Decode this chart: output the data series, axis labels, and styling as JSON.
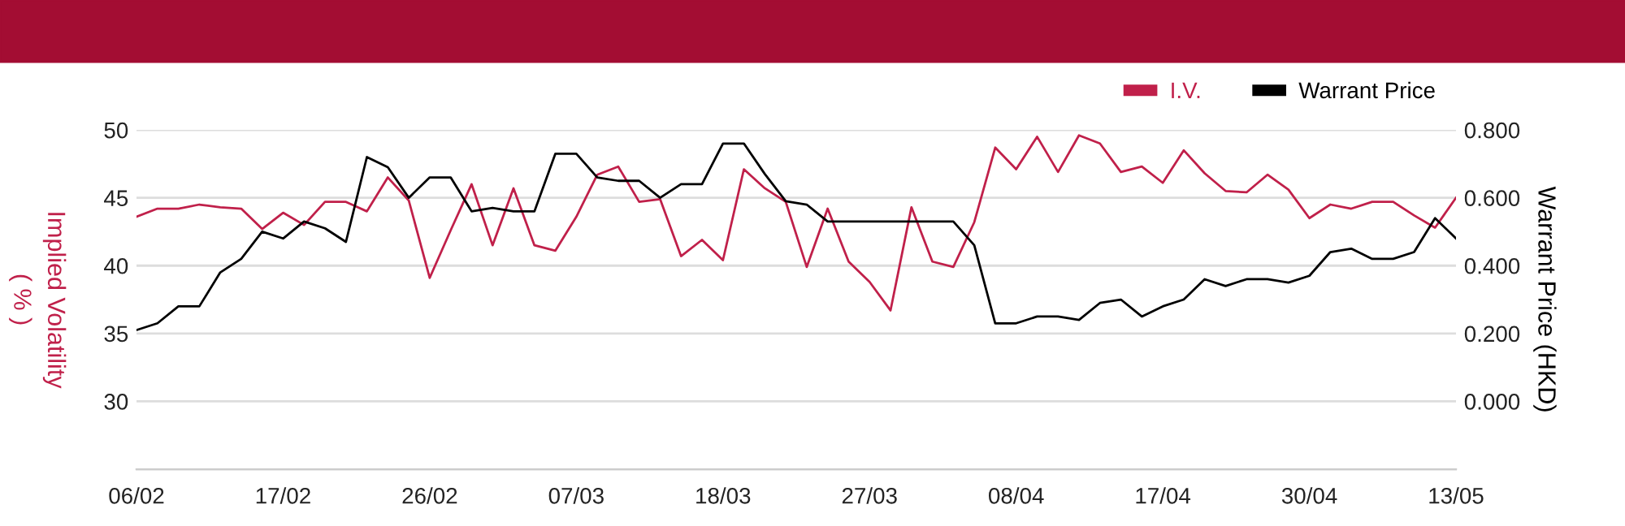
{
  "chart_data": {
    "type": "line",
    "categories": [
      "06/02",
      null,
      null,
      null,
      null,
      null,
      null,
      "17/02",
      null,
      null,
      null,
      null,
      null,
      null,
      "26/02",
      null,
      null,
      null,
      null,
      null,
      null,
      "07/03",
      null,
      null,
      null,
      null,
      null,
      null,
      "18/03",
      null,
      null,
      null,
      null,
      null,
      null,
      "27/03",
      null,
      null,
      null,
      null,
      null,
      null,
      "08/04",
      null,
      null,
      null,
      null,
      null,
      null,
      "17/04",
      null,
      null,
      null,
      null,
      null,
      null,
      "30/04",
      null,
      null,
      null,
      null,
      null,
      null,
      "13/05"
    ],
    "series": [
      {
        "name": "I.V.",
        "color": "#c0204a",
        "values": [
          43.6,
          44.2,
          44.2,
          44.5,
          44.3,
          44.2,
          42.7,
          43.9,
          43.0,
          44.7,
          44.7,
          44.0,
          46.5,
          44.8,
          39.1,
          42.6,
          46.0,
          41.5,
          45.7,
          41.5,
          41.1,
          43.6,
          46.7,
          47.3,
          44.7,
          44.9,
          40.7,
          41.9,
          40.4,
          47.1,
          45.7,
          44.7,
          39.9,
          44.2,
          40.3,
          38.8,
          36.7,
          44.3,
          40.3,
          39.9,
          43.2,
          48.7,
          47.1,
          49.5,
          46.9,
          49.6,
          49.0,
          46.9,
          47.3,
          46.1,
          48.5,
          46.8,
          45.5,
          45.4,
          46.7,
          45.6,
          43.5,
          44.5,
          44.2,
          44.7,
          44.7,
          43.7,
          42.8,
          45.0
        ]
      },
      {
        "name": "Warrant Price",
        "color": "#000000",
        "axis": "y2",
        "values": [
          0.21,
          0.23,
          0.28,
          0.28,
          0.38,
          0.42,
          0.5,
          0.48,
          0.53,
          0.51,
          0.47,
          0.72,
          0.69,
          0.6,
          0.66,
          0.66,
          0.56,
          0.57,
          0.56,
          0.56,
          0.73,
          0.73,
          0.66,
          0.65,
          0.65,
          0.6,
          0.64,
          0.64,
          0.76,
          0.76,
          0.67,
          0.59,
          0.58,
          0.53,
          0.53,
          0.53,
          0.53,
          0.53,
          0.53,
          0.53,
          0.46,
          0.23,
          0.23,
          0.25,
          0.25,
          0.24,
          0.29,
          0.3,
          0.25,
          0.28,
          0.3,
          0.36,
          0.34,
          0.36,
          0.36,
          0.35,
          0.37,
          0.44,
          0.45,
          0.42,
          0.42,
          0.44,
          0.54,
          0.48
        ]
      }
    ],
    "ylabel": "Implied Volatility\n( % )",
    "y2label": "Warrant Price (HKD)",
    "ylim": [
      25,
      50
    ],
    "yticks": [
      30,
      35,
      40,
      45,
      50
    ],
    "y2lim": [
      -0.2,
      0.8
    ],
    "y2ticks": [
      {
        "value": 0,
        "label": "0.000"
      },
      {
        "value": 0.2,
        "label": "0.200"
      },
      {
        "value": 0.4,
        "label": "0.400"
      },
      {
        "value": 0.6,
        "label": "0.600"
      },
      {
        "value": 0.8,
        "label": "0.800"
      }
    ],
    "grid": "y",
    "legend": "top right",
    "line_style": "solid",
    "marker": "none"
  }
}
